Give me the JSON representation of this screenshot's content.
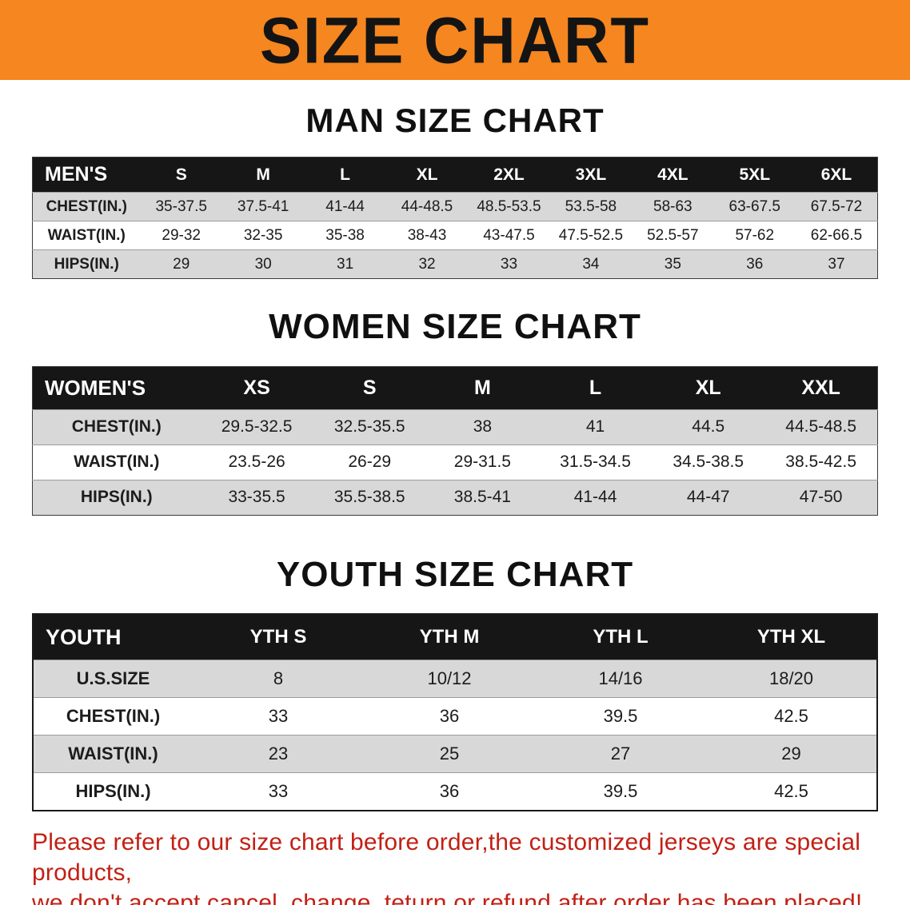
{
  "banner": {
    "title": "SIZE CHART"
  },
  "sections": [
    {
      "heading": "MAN SIZE CHART",
      "table": {
        "header": [
          "MEN'S",
          "S",
          "M",
          "L",
          "XL",
          "2XL",
          "3XL",
          "4XL",
          "5XL",
          "6XL"
        ],
        "rows": [
          [
            "CHEST(IN.)",
            "35-37.5",
            "37.5-41",
            "41-44",
            "44-48.5",
            "48.5-53.5",
            "53.5-58",
            "58-63",
            "63-67.5",
            "67.5-72"
          ],
          [
            "WAIST(IN.)",
            "29-32",
            "32-35",
            "35-38",
            "38-43",
            "43-47.5",
            "47.5-52.5",
            "52.5-57",
            "57-62",
            "62-66.5"
          ],
          [
            "HIPS(IN.)",
            "29",
            "30",
            "31",
            "32",
            "33",
            "34",
            "35",
            "36",
            "37"
          ]
        ]
      }
    },
    {
      "heading": "WOMEN SIZE CHART",
      "table": {
        "header": [
          "WOMEN'S",
          "XS",
          "S",
          "M",
          "L",
          "XL",
          "XXL"
        ],
        "rows": [
          [
            "CHEST(IN.)",
            "29.5-32.5",
            "32.5-35.5",
            "38",
            "41",
            "44.5",
            "44.5-48.5"
          ],
          [
            "WAIST(IN.)",
            "23.5-26",
            "26-29",
            "29-31.5",
            "31.5-34.5",
            "34.5-38.5",
            "38.5-42.5"
          ],
          [
            "HIPS(IN.)",
            "33-35.5",
            "35.5-38.5",
            "38.5-41",
            "41-44",
            "44-47",
            "47-50"
          ]
        ]
      }
    },
    {
      "heading": "YOUTH SIZE CHART",
      "table": {
        "header": [
          "YOUTH",
          "YTH S",
          "YTH M",
          "YTH L",
          "YTH XL"
        ],
        "rows": [
          [
            "U.S.SIZE",
            "8",
            "10/12",
            "14/16",
            "18/20"
          ],
          [
            "CHEST(IN.)",
            "33",
            "36",
            "39.5",
            "42.5"
          ],
          [
            "WAIST(IN.)",
            "23",
            "25",
            "27",
            "29"
          ],
          [
            "HIPS(IN.)",
            "33",
            "36",
            "39.5",
            "42.5"
          ]
        ]
      }
    }
  ],
  "disclaimer": {
    "lines": [
      "Please refer to our size chart before order,the customized jerseys are special products,",
      "we don't accept cancel, change, teturn or refund after order has been placed!"
    ]
  },
  "colors": {
    "banner_bg": "#F6861F",
    "header_bg": "#161616",
    "row_alt_bg": "#D8D8D8",
    "disclaimer_text": "#C22014"
  }
}
